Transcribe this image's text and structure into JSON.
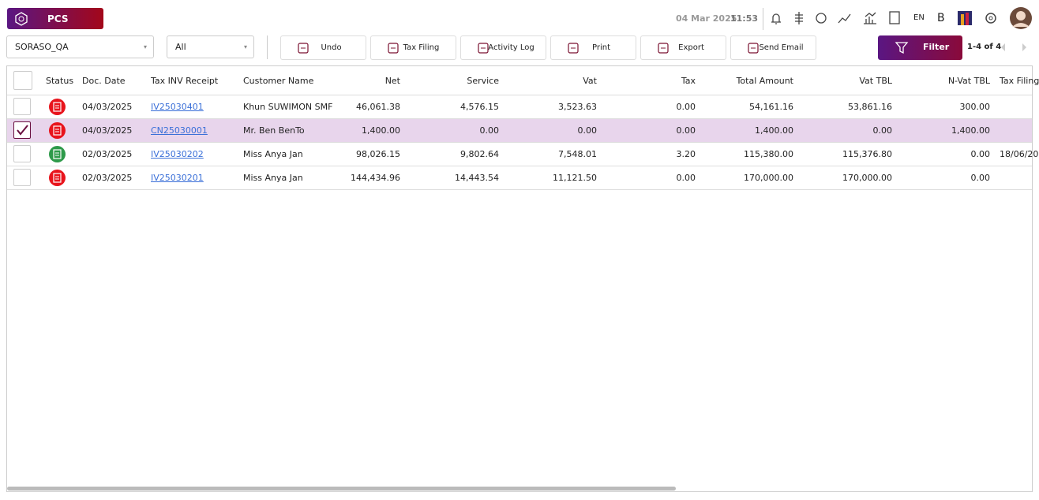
{
  "header": {
    "logo": "PCS",
    "date": "04 Mar 2025",
    "time": "11:53",
    "language": "EN",
    "user_initial": "B"
  },
  "toolbar": {
    "company": "SORASO_QA",
    "status_filter": "All",
    "buttons": [
      "Undo",
      "Tax Filing",
      "Activity Log",
      "Print",
      "Export",
      "Send Email"
    ],
    "filter_button": "Filter",
    "pagination": "1-4 of 4"
  },
  "table": {
    "columns": [
      "Status",
      "Doc. Date",
      "Tax INV Receipt",
      "Customer Name",
      "Net",
      "Service",
      "Vat",
      "Tax",
      "Total Amount",
      "Vat TBL",
      "N-Vat TBL",
      "Tax Filing"
    ],
    "rows": [
      {
        "selected": false,
        "status": "red",
        "cells": [
          "04/03/2025",
          "IV25030401",
          "Khun SUWIMON SMF",
          "46,061.38",
          "4,576.15",
          "3,523.63",
          "0.00",
          "54,161.16",
          "53,861.16",
          "300.00"
        ]
      },
      {
        "selected": true,
        "status": "red",
        "cells": [
          "04/03/2025",
          "CN25030001",
          "Mr. Ben BenTo",
          "1,400.00",
          "0.00",
          "0.00",
          "0.00",
          "1,400.00",
          "0.00",
          "1,400.00"
        ]
      },
      {
        "selected": false,
        "status": "green",
        "cells": [
          "02/03/2025",
          "IV25030202",
          "Miss Anya Jan",
          "98,026.15",
          "9,802.64",
          "7,548.01",
          "3.20",
          "115,380.00",
          "115,376.80",
          "0.00",
          "18/06/20"
        ]
      },
      {
        "selected": false,
        "status": "red",
        "cells": [
          "02/03/2025",
          "IV25030201",
          "Miss Anya Jan",
          "144,434.96",
          "14,443.54",
          "11,121.50",
          "0.00",
          "170,000.00",
          "170,000.00",
          "0.00"
        ]
      }
    ]
  }
}
